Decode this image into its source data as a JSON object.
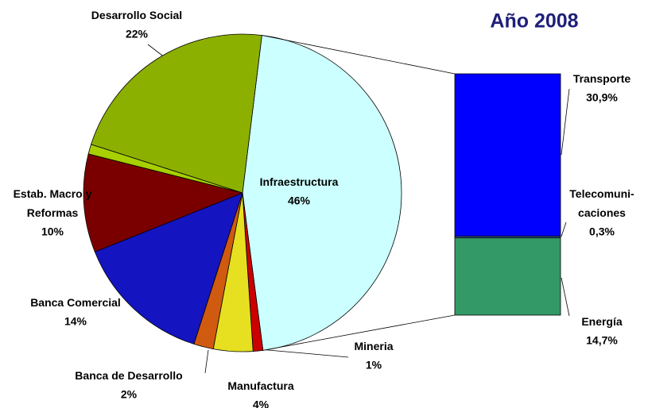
{
  "chart_data": {
    "type": "pie-of-bar",
    "title": "Año 2008",
    "categories": [
      "Infraestructura",
      "Mineria",
      "Manufactura",
      "Banca de Desarrollo",
      "Banca Comercial",
      "Estab. Macro y\nReformas",
      null,
      "Desarrollo Social"
    ],
    "values": [
      46,
      1,
      4,
      2,
      14,
      10,
      1,
      22
    ],
    "value_labels": [
      "46%",
      "1%",
      "4%",
      "2%",
      "14%",
      "10%",
      null,
      "22%"
    ],
    "colors": [
      "#ccffff",
      "#cc0000",
      "#e6e020",
      "#d05a10",
      "#1414c0",
      "#7a0000",
      "#a6d000",
      "#8cb000"
    ],
    "bar": {
      "categories": [
        "Transporte",
        "Telecomuni-\ncaciones",
        "Energía"
      ],
      "values": [
        30.9,
        0.3,
        14.7
      ],
      "value_labels": [
        "30,9%",
        "0,3%",
        "14,7%"
      ],
      "colors": [
        "#0000ff",
        "#3a6aa0",
        "#339966"
      ]
    }
  }
}
